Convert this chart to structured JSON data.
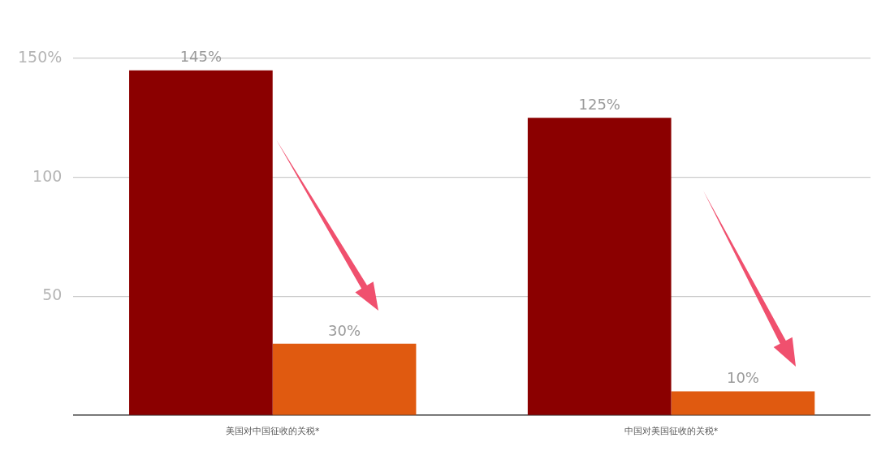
{
  "chart_data": {
    "type": "bar",
    "categories": [
      "美国对中国征收的关税*",
      "中国对美国征收的关税*"
    ],
    "series": [
      {
        "color": "#8b0000",
        "values": [
          145,
          125
        ],
        "value_labels": [
          "145%",
          "125%"
        ]
      },
      {
        "color": "#e05a10",
        "values": [
          30,
          10
        ],
        "value_labels": [
          "30%",
          "10%"
        ]
      }
    ],
    "ylim": [
      0,
      150
    ],
    "yticks": [
      50,
      100,
      {
        "value": 150,
        "label": "150%"
      }
    ],
    "grid": "y",
    "legend": false
  }
}
